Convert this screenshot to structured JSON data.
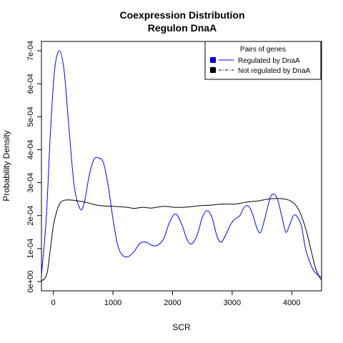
{
  "chart_data": {
    "type": "line",
    "title": "Coexpression Distribution",
    "subtitle": "Regulon DnaA",
    "xlabel": "SCR",
    "ylabel": "Probability Density",
    "xlim": [
      -200,
      4500
    ],
    "ylim": [
      0,
      0.00075
    ],
    "x_ticks": [
      0,
      1000,
      2000,
      3000,
      4000
    ],
    "x_tick_labels": [
      "0",
      "1000",
      "2000",
      "3000",
      "4000"
    ],
    "y_ticks": [
      0,
      0.0001,
      0.0002,
      0.0003,
      0.0004,
      0.0005,
      0.0006,
      0.0007
    ],
    "y_tick_labels": [
      "0e+00",
      "1e-04",
      "2e-04",
      "3e-04",
      "4e-04",
      "5e-04",
      "6e-04",
      "7e-04"
    ],
    "grid": false,
    "legend": {
      "title": "Pairs of genes",
      "placement": "top-right",
      "entries": [
        "Regulated by  DnaA",
        "Not regulated by  DnaA"
      ]
    },
    "series": [
      {
        "name": "Regulated by  DnaA",
        "color": "#0000ff",
        "points": [
          [
            -200,
            2e-05
          ],
          [
            -120,
            0.00019
          ],
          [
            -50,
            0.00045
          ],
          [
            20,
            0.00064
          ],
          [
            100,
            0.0007
          ],
          [
            180,
            0.00064
          ],
          [
            260,
            0.00047
          ],
          [
            350,
            0.00029
          ],
          [
            450,
            0.00022
          ],
          [
            520,
            0.00024
          ],
          [
            600,
            0.00032
          ],
          [
            680,
            0.00037
          ],
          [
            760,
            0.000375
          ],
          [
            840,
            0.00036
          ],
          [
            920,
            0.00029
          ],
          [
            1000,
            0.00019
          ],
          [
            1080,
            0.00011
          ],
          [
            1160,
            8e-05
          ],
          [
            1250,
            7.5e-05
          ],
          [
            1350,
            9e-05
          ],
          [
            1450,
            0.000115
          ],
          [
            1550,
            0.00012
          ],
          [
            1650,
            0.00011
          ],
          [
            1750,
            0.00011
          ],
          [
            1850,
            0.00013
          ],
          [
            1950,
            0.00018
          ],
          [
            2050,
            0.000205
          ],
          [
            2150,
            0.000175
          ],
          [
            2250,
            0.000125
          ],
          [
            2330,
            0.000115
          ],
          [
            2420,
            0.000145
          ],
          [
            2500,
            0.000195
          ],
          [
            2580,
            0.000215
          ],
          [
            2660,
            0.000195
          ],
          [
            2750,
            0.000135
          ],
          [
            2820,
            0.00012
          ],
          [
            2900,
            0.000145
          ],
          [
            2980,
            0.000175
          ],
          [
            3050,
            0.00019
          ],
          [
            3130,
            0.0002
          ],
          [
            3200,
            0.000225
          ],
          [
            3280,
            0.000228
          ],
          [
            3350,
            0.0002
          ],
          [
            3420,
            0.00016
          ],
          [
            3480,
            0.00015
          ],
          [
            3560,
            0.0002
          ],
          [
            3640,
            0.000255
          ],
          [
            3700,
            0.000265
          ],
          [
            3760,
            0.00025
          ],
          [
            3830,
            0.0002
          ],
          [
            3900,
            0.00015
          ],
          [
            3960,
            0.00017
          ],
          [
            4030,
            0.0002
          ],
          [
            4090,
            0.000197
          ],
          [
            4160,
            0.00017
          ],
          [
            4230,
            0.0001
          ],
          [
            4300,
            6e-05
          ],
          [
            4380,
            3e-05
          ],
          [
            4500,
            1.2e-05
          ]
        ]
      },
      {
        "name": "Not regulated by  DnaA",
        "color": "#000000",
        "points": [
          [
            -200,
            3e-06
          ],
          [
            -150,
            8e-06
          ],
          [
            -100,
            3e-05
          ],
          [
            -50,
            0.0001
          ],
          [
            0,
            0.00017
          ],
          [
            60,
            0.000215
          ],
          [
            120,
            0.00024
          ],
          [
            200,
            0.000247
          ],
          [
            300,
            0.000247
          ],
          [
            400,
            0.000245
          ],
          [
            500,
            0.000242
          ],
          [
            600,
            0.000238
          ],
          [
            700,
            0.000233
          ],
          [
            800,
            0.00023
          ],
          [
            1000,
            0.000228
          ],
          [
            1200,
            0.000226
          ],
          [
            1350,
            0.000222
          ],
          [
            1500,
            0.000225
          ],
          [
            1650,
            0.000223
          ],
          [
            1850,
            0.000228
          ],
          [
            2050,
            0.000225
          ],
          [
            2250,
            0.000226
          ],
          [
            2450,
            0.00023
          ],
          [
            2650,
            0.000232
          ],
          [
            2850,
            0.000235
          ],
          [
            3050,
            0.000235
          ],
          [
            3250,
            0.000241
          ],
          [
            3450,
            0.000245
          ],
          [
            3600,
            0.00025
          ],
          [
            3750,
            0.000252
          ],
          [
            3850,
            0.000251
          ],
          [
            3950,
            0.000247
          ],
          [
            4050,
            0.000235
          ],
          [
            4150,
            0.000205
          ],
          [
            4250,
            0.00015
          ],
          [
            4330,
            9e-05
          ],
          [
            4400,
            4e-05
          ],
          [
            4460,
            1.5e-05
          ],
          [
            4500,
            5e-06
          ]
        ]
      }
    ]
  }
}
